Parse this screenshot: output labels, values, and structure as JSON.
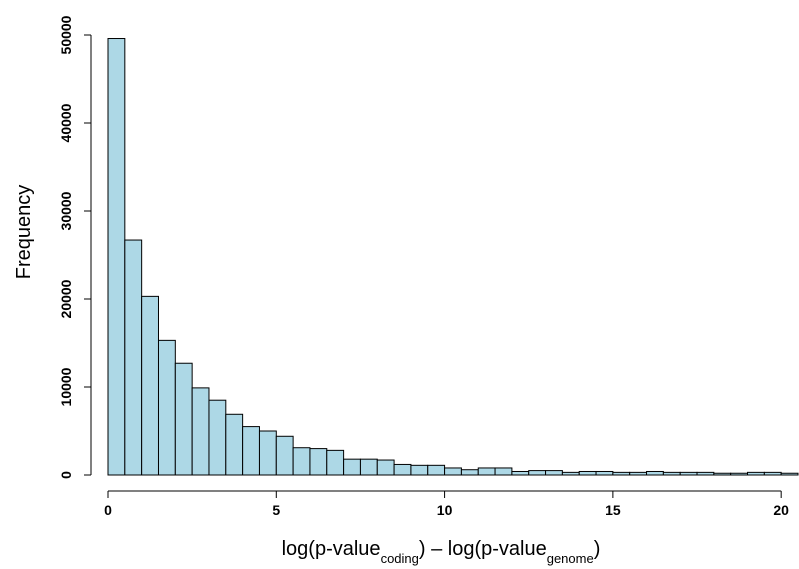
{
  "chart_data": {
    "type": "bar",
    "title": "",
    "ylabel": "Frequency",
    "xlabel": {
      "parts": [
        "log(p-value",
        "coding",
        ") – log(p-value",
        "genome",
        ")"
      ]
    },
    "xlim": [
      0,
      20.5
    ],
    "ylim": [
      0,
      50000
    ],
    "bin_width": 0.5,
    "x_ticks": [
      0,
      5,
      10,
      15,
      20
    ],
    "x_tick_labels": [
      "0",
      "5",
      "10",
      "15",
      "20"
    ],
    "y_ticks": [
      0,
      10000,
      20000,
      30000,
      40000,
      50000
    ],
    "y_tick_labels": [
      "0",
      "10000",
      "20000",
      "30000",
      "40000",
      "50000"
    ],
    "bin_starts": [
      0,
      0.5,
      1,
      1.5,
      2,
      2.5,
      3,
      3.5,
      4,
      4.5,
      5,
      5.5,
      6,
      6.5,
      7,
      7.5,
      8,
      8.5,
      9,
      9.5,
      10,
      10.5,
      11,
      11.5,
      12,
      12.5,
      13,
      13.5,
      14,
      14.5,
      15,
      15.5,
      16,
      16.5,
      17,
      17.5,
      18,
      18.5,
      19,
      19.5,
      20
    ],
    "values": [
      49600,
      26700,
      20300,
      15300,
      12700,
      9900,
      8500,
      6900,
      5500,
      5000,
      4400,
      3100,
      3000,
      2800,
      1800,
      1800,
      1700,
      1200,
      1100,
      1100,
      800,
      600,
      800,
      800,
      400,
      500,
      500,
      300,
      400,
      400,
      300,
      300,
      400,
      300,
      300,
      300,
      200,
      200,
      300,
      300,
      200
    ],
    "bar_color": "#add8e6",
    "grid": false,
    "legend": "none"
  }
}
